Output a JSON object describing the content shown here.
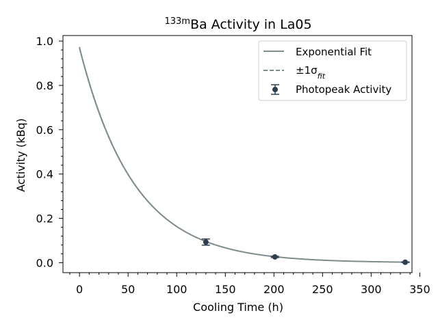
{
  "chart_data": {
    "type": "scatter",
    "title_prefix_sup": "133m",
    "title_main": "Ba Activity in La05",
    "xlabel": "Cooling Time (h)",
    "ylabel": "Activity (kBq)",
    "xlim": [
      -17,
      342
    ],
    "ylim": [
      -0.045,
      1.025
    ],
    "x_ticks": [
      0,
      50,
      100,
      150,
      200,
      250,
      300,
      350
    ],
    "y_ticks": [
      0.0,
      0.2,
      0.4,
      0.6,
      0.8,
      1.0
    ],
    "x_tick_labels": [
      "0",
      "50",
      "100",
      "150",
      "200",
      "250",
      "300",
      "350"
    ],
    "y_tick_labels": [
      "0.0",
      "0.2",
      "0.4",
      "0.6",
      "0.8",
      "1.0"
    ],
    "grid": false,
    "legend_position": "top-right",
    "fit": {
      "model": "exponential",
      "A0": 0.97,
      "half_life_h": 38.9,
      "x_range": [
        0,
        340
      ],
      "color": "#7f8c8d"
    },
    "series": [
      {
        "name": "Photopeak Activity",
        "color": "#2c3e50",
        "points": [
          {
            "x": 130,
            "y": 0.093,
            "yerr": 0.014
          },
          {
            "x": 201,
            "y": 0.026,
            "yerr": 0.003
          },
          {
            "x": 335,
            "y": 0.002,
            "yerr": 0.001
          }
        ]
      }
    ],
    "legend": {
      "fit_label": "Exponential Fit",
      "sigma_label_prefix": "±1σ",
      "sigma_label_sub": "fit",
      "points_label": "Photopeak Activity"
    }
  }
}
